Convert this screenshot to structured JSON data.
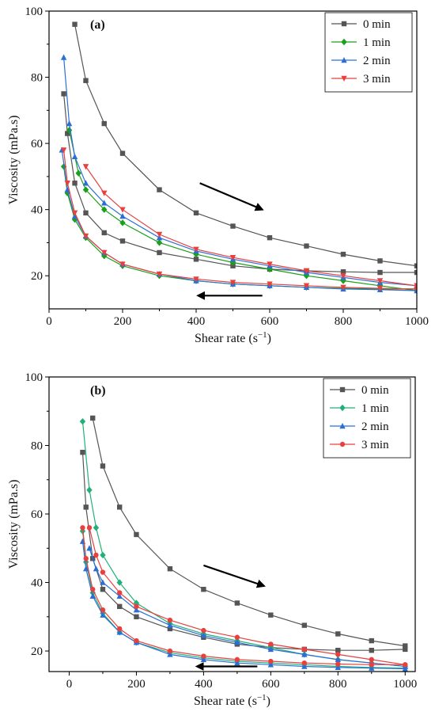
{
  "chart_data": [
    {
      "type": "line",
      "panel_label": "(a)",
      "xlabel": "Shear rate (s",
      "xlabel_sup": "−1",
      "xlabel_close": ")",
      "ylabel": "Viscosity (mPa.s)",
      "xlim": [
        0,
        1000
      ],
      "ylim": [
        10,
        100
      ],
      "xticks": [
        0,
        200,
        400,
        600,
        800,
        1000
      ],
      "yticks": [
        20,
        40,
        60,
        80,
        100
      ],
      "legend_position": "top-right",
      "arrows": [
        {
          "direction": "up-sweep",
          "from": [
            410,
            48
          ],
          "to": [
            580,
            40
          ]
        },
        {
          "direction": "down-sweep",
          "from": [
            580,
            14
          ],
          "to": [
            405,
            14
          ]
        }
      ],
      "series": [
        {
          "name": "0 min",
          "color": "#555555",
          "marker": "square",
          "up": {
            "x": [
              70,
              100,
              150,
              200,
              300,
              400,
              500,
              600,
              700,
              800,
              900,
              1000
            ],
            "y": [
              96,
              79,
              66,
              57,
              46,
              39,
              35,
              31.5,
              29,
              26.5,
              24.5,
              23
            ]
          },
          "down": {
            "x": [
              1000,
              900,
              800,
              700,
              600,
              500,
              400,
              300,
              200,
              150,
              100,
              70,
              50,
              40
            ],
            "y": [
              21,
              21,
              21.2,
              21.5,
              22,
              23,
              25,
              27,
              30.5,
              33,
              39,
              48,
              63,
              75
            ]
          }
        },
        {
          "name": "1 min",
          "color": "#1aa01a",
          "marker": "diamond",
          "up": {
            "x": [
              55,
              80,
              100,
              150,
              200,
              300,
              400,
              500,
              600,
              700,
              800,
              900,
              1000
            ],
            "y": [
              64,
              51,
              46,
              40,
              36,
              30,
              26.5,
              24,
              22,
              20,
              18.5,
              17,
              15.5
            ]
          },
          "down": {
            "x": [
              1000,
              900,
              800,
              700,
              600,
              500,
              400,
              300,
              200,
              150,
              100,
              70,
              50,
              40
            ],
            "y": [
              16,
              16,
              16.2,
              16.5,
              17,
              17.5,
              18.5,
              20,
              23,
              26,
              31.5,
              37,
              45,
              53
            ]
          }
        },
        {
          "name": "2 min",
          "color": "#2b6fd6",
          "marker": "triangle",
          "up": {
            "x": [
              40,
              55,
              70,
              100,
              150,
              200,
              300,
              400,
              500,
              600,
              700,
              800,
              900,
              1000
            ],
            "y": [
              86,
              66,
              56,
              48,
              42,
              38,
              31.5,
              27.5,
              25,
              23,
              21,
              19.5,
              18,
              17
            ]
          },
          "down": {
            "x": [
              1000,
              900,
              800,
              700,
              600,
              500,
              400,
              300,
              200,
              150,
              100,
              70,
              50,
              35
            ],
            "y": [
              15.5,
              15.8,
              16,
              16.5,
              17,
              17.5,
              18.5,
              20.5,
              23.5,
              27,
              32,
              38,
              46,
              58
            ]
          }
        },
        {
          "name": "3 min",
          "color": "#e8403f",
          "marker": "triangle-down",
          "up": {
            "x": [
              100,
              150,
              200,
              300,
              400,
              500,
              600,
              700,
              800,
              900,
              1000
            ],
            "y": [
              53,
              45,
              40,
              32.5,
              28,
              25.5,
              23.5,
              21.5,
              20,
              18.5,
              17
            ]
          },
          "down": {
            "x": [
              1000,
              900,
              800,
              700,
              600,
              500,
              400,
              300,
              200,
              150,
              100,
              70,
              50,
              40
            ],
            "y": [
              16,
              16.2,
              16.5,
              17,
              17.5,
              18,
              19,
              20.5,
              23.5,
              27,
              32,
              39,
              48,
              58
            ]
          }
        }
      ]
    },
    {
      "type": "line",
      "panel_label": "(b)",
      "xlabel": "Shear rate (s",
      "xlabel_sup": "−1",
      "xlabel_close": ")",
      "ylabel": "Viscosity (mPa.s)",
      "xlim": [
        -60,
        1030
      ],
      "ylim": [
        14,
        100
      ],
      "xticks": [
        0,
        200,
        400,
        600,
        800,
        1000
      ],
      "yticks": [
        20,
        40,
        60,
        80,
        100
      ],
      "legend_position": "top-right",
      "arrows": [
        {
          "direction": "up-sweep",
          "from": [
            400,
            45
          ],
          "to": [
            580,
            39
          ]
        },
        {
          "direction": "down-sweep",
          "from": [
            560,
            15.5
          ],
          "to": [
            380,
            15.5
          ]
        }
      ],
      "series": [
        {
          "name": "0 min",
          "color": "#555555",
          "marker": "square",
          "up": {
            "x": [
              70,
              100,
              150,
              200,
              300,
              400,
              500,
              600,
              700,
              800,
              900,
              1000
            ],
            "y": [
              88,
              74,
              62,
              54,
              44,
              38,
              34,
              30.5,
              27.5,
              25,
              23,
              21.5
            ]
          },
          "down": {
            "x": [
              1000,
              900,
              800,
              700,
              600,
              500,
              400,
              300,
              200,
              150,
              100,
              70,
              50,
              40
            ],
            "y": [
              20.5,
              20.2,
              20.2,
              20.5,
              21,
              22,
              24,
              26.5,
              30,
              33,
              38,
              47,
              62,
              78
            ]
          }
        },
        {
          "name": "1 min",
          "color": "#22b07a",
          "marker": "diamond",
          "up": {
            "x": [
              40,
              60,
              80,
              100,
              150,
              200,
              300,
              400,
              500,
              600,
              700,
              800,
              900,
              1000
            ],
            "y": [
              87,
              67,
              56,
              48,
              40,
              34,
              28,
              25,
              23,
              21,
              19,
              17.5,
              16.5,
              15.5
            ]
          },
          "down": {
            "x": [
              1000,
              900,
              800,
              700,
              600,
              500,
              400,
              300,
              200,
              150,
              100,
              70,
              50,
              40
            ],
            "y": [
              15,
              15.2,
              15.5,
              16,
              16.5,
              17,
              18,
              19.5,
              22.5,
              25.5,
              31,
              37,
              46,
              55
            ]
          }
        },
        {
          "name": "2 min",
          "color": "#2b6fd6",
          "marker": "triangle",
          "up": {
            "x": [
              60,
              80,
              100,
              150,
              200,
              300,
              400,
              500,
              600,
              700,
              800,
              900,
              1000
            ],
            "y": [
              50,
              44,
              40,
              36,
              32,
              27.5,
              24.5,
              22.5,
              20.5,
              19,
              17.5,
              16.5,
              15.5
            ]
          },
          "down": {
            "x": [
              1000,
              900,
              800,
              700,
              600,
              500,
              400,
              300,
              200,
              150,
              100,
              70,
              50,
              40
            ],
            "y": [
              14.8,
              15,
              15.2,
              15.5,
              16,
              16.5,
              17.5,
              19,
              22.5,
              25.5,
              30.5,
              36,
              44,
              52
            ]
          }
        },
        {
          "name": "3 min",
          "color": "#e8403f",
          "marker": "circle",
          "up": {
            "x": [
              60,
              80,
              100,
              150,
              200,
              300,
              400,
              500,
              600,
              700,
              800,
              900,
              1000
            ],
            "y": [
              56,
              48,
              43,
              37,
              33,
              29,
              26,
              24,
              22,
              20.5,
              19,
              17.5,
              16
            ]
          },
          "down": {
            "x": [
              1000,
              900,
              800,
              700,
              600,
              500,
              400,
              300,
              200,
              150,
              100,
              70,
              50,
              40
            ],
            "y": [
              16,
              16,
              16.2,
              16.5,
              17,
              17.5,
              18.5,
              20,
              23,
              26.5,
              32,
              38,
              47,
              56
            ]
          }
        }
      ]
    }
  ]
}
